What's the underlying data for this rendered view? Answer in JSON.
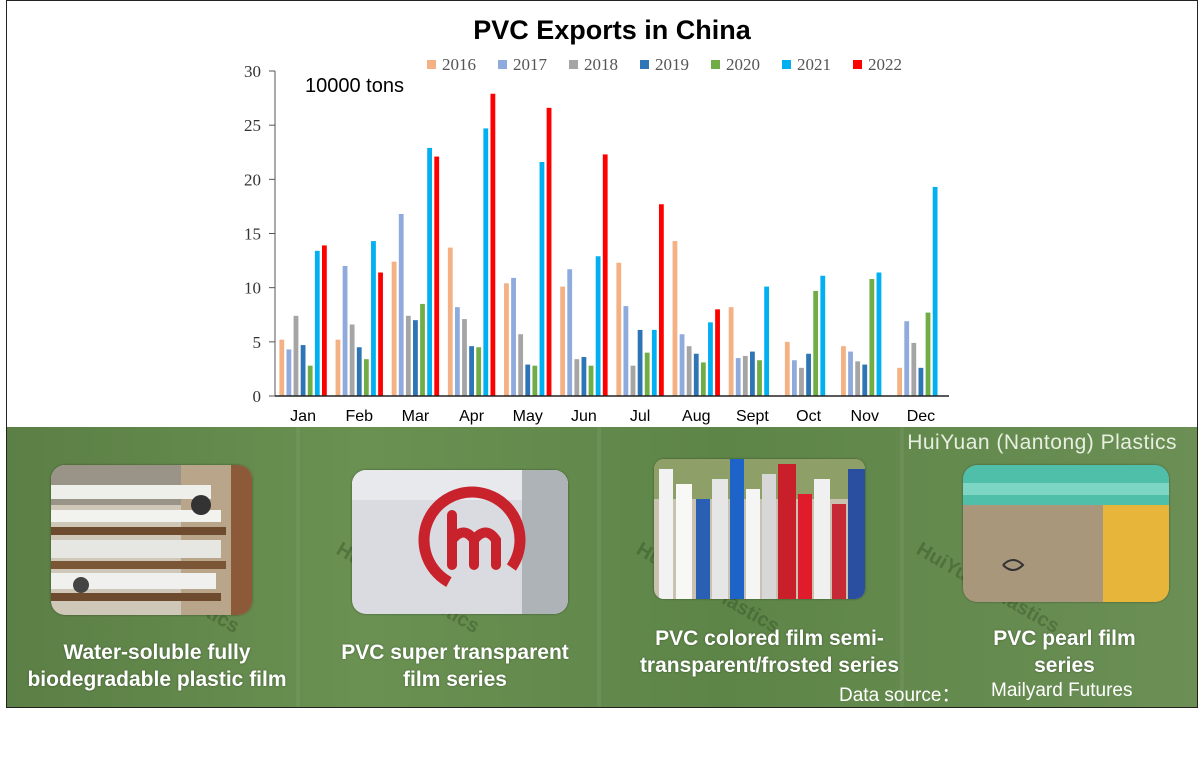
{
  "chart_data": {
    "type": "bar",
    "title": "PVC Exports in China",
    "ylabel": "10000 tons",
    "ylim": [
      0,
      30
    ],
    "yticks": [
      0,
      5,
      10,
      15,
      20,
      25,
      30
    ],
    "legend_position": "top",
    "grid": false,
    "categories": [
      "Jan",
      "Feb",
      "Mar",
      "Apr",
      "May",
      "Jun",
      "Jul",
      "Aug",
      "Sept",
      "Oct",
      "Nov",
      "Dec"
    ],
    "series": [
      {
        "name": "2016",
        "color": "#f4b183",
        "values": [
          5.2,
          5.2,
          12.4,
          13.7,
          10.4,
          10.1,
          12.3,
          14.3,
          8.2,
          5.0,
          4.6,
          2.6
        ]
      },
      {
        "name": "2017",
        "color": "#8faadc",
        "values": [
          4.3,
          12.0,
          16.8,
          8.2,
          10.9,
          11.7,
          8.3,
          5.7,
          3.5,
          3.3,
          4.1,
          6.9
        ]
      },
      {
        "name": "2018",
        "color": "#a5a5a5",
        "values": [
          7.4,
          6.6,
          7.4,
          7.1,
          5.7,
          3.4,
          2.8,
          4.6,
          3.7,
          2.6,
          3.2,
          4.9
        ]
      },
      {
        "name": "2019",
        "color": "#2e75b6",
        "values": [
          4.7,
          4.5,
          7.0,
          4.6,
          2.9,
          3.6,
          6.1,
          3.9,
          4.1,
          3.9,
          2.9,
          2.6
        ]
      },
      {
        "name": "2020",
        "color": "#70ad47",
        "values": [
          2.8,
          3.4,
          8.5,
          4.5,
          2.8,
          2.8,
          4.0,
          3.1,
          3.3,
          9.7,
          10.8,
          7.7
        ]
      },
      {
        "name": "2021",
        "color": "#00b0f0",
        "values": [
          13.4,
          14.3,
          22.9,
          24.7,
          21.6,
          12.9,
          6.1,
          6.8,
          10.1,
          11.1,
          11.4,
          19.3
        ]
      },
      {
        "name": "2022",
        "color": "#ff0000",
        "values": [
          13.9,
          11.4,
          22.1,
          27.9,
          26.6,
          22.3,
          17.7,
          8.0,
          null,
          null,
          null,
          null
        ]
      }
    ]
  },
  "banner": {
    "brand": "HuiYuan (Nantong) Plastics",
    "watermark": "HuiYuan Plastics",
    "products": [
      {
        "caption_line1": "Water-soluble fully",
        "caption_line2": "biodegradable plastic film"
      },
      {
        "caption_line1": "PVC super transparent",
        "caption_line2": "film series"
      },
      {
        "caption_line1": "PVC colored film semi-",
        "caption_line2": "transparent/frosted series"
      },
      {
        "caption_line1": "PVC pearl film",
        "caption_line2": "series"
      }
    ],
    "source_label": "Data source：",
    "source_value": "Mailyard Futures"
  }
}
